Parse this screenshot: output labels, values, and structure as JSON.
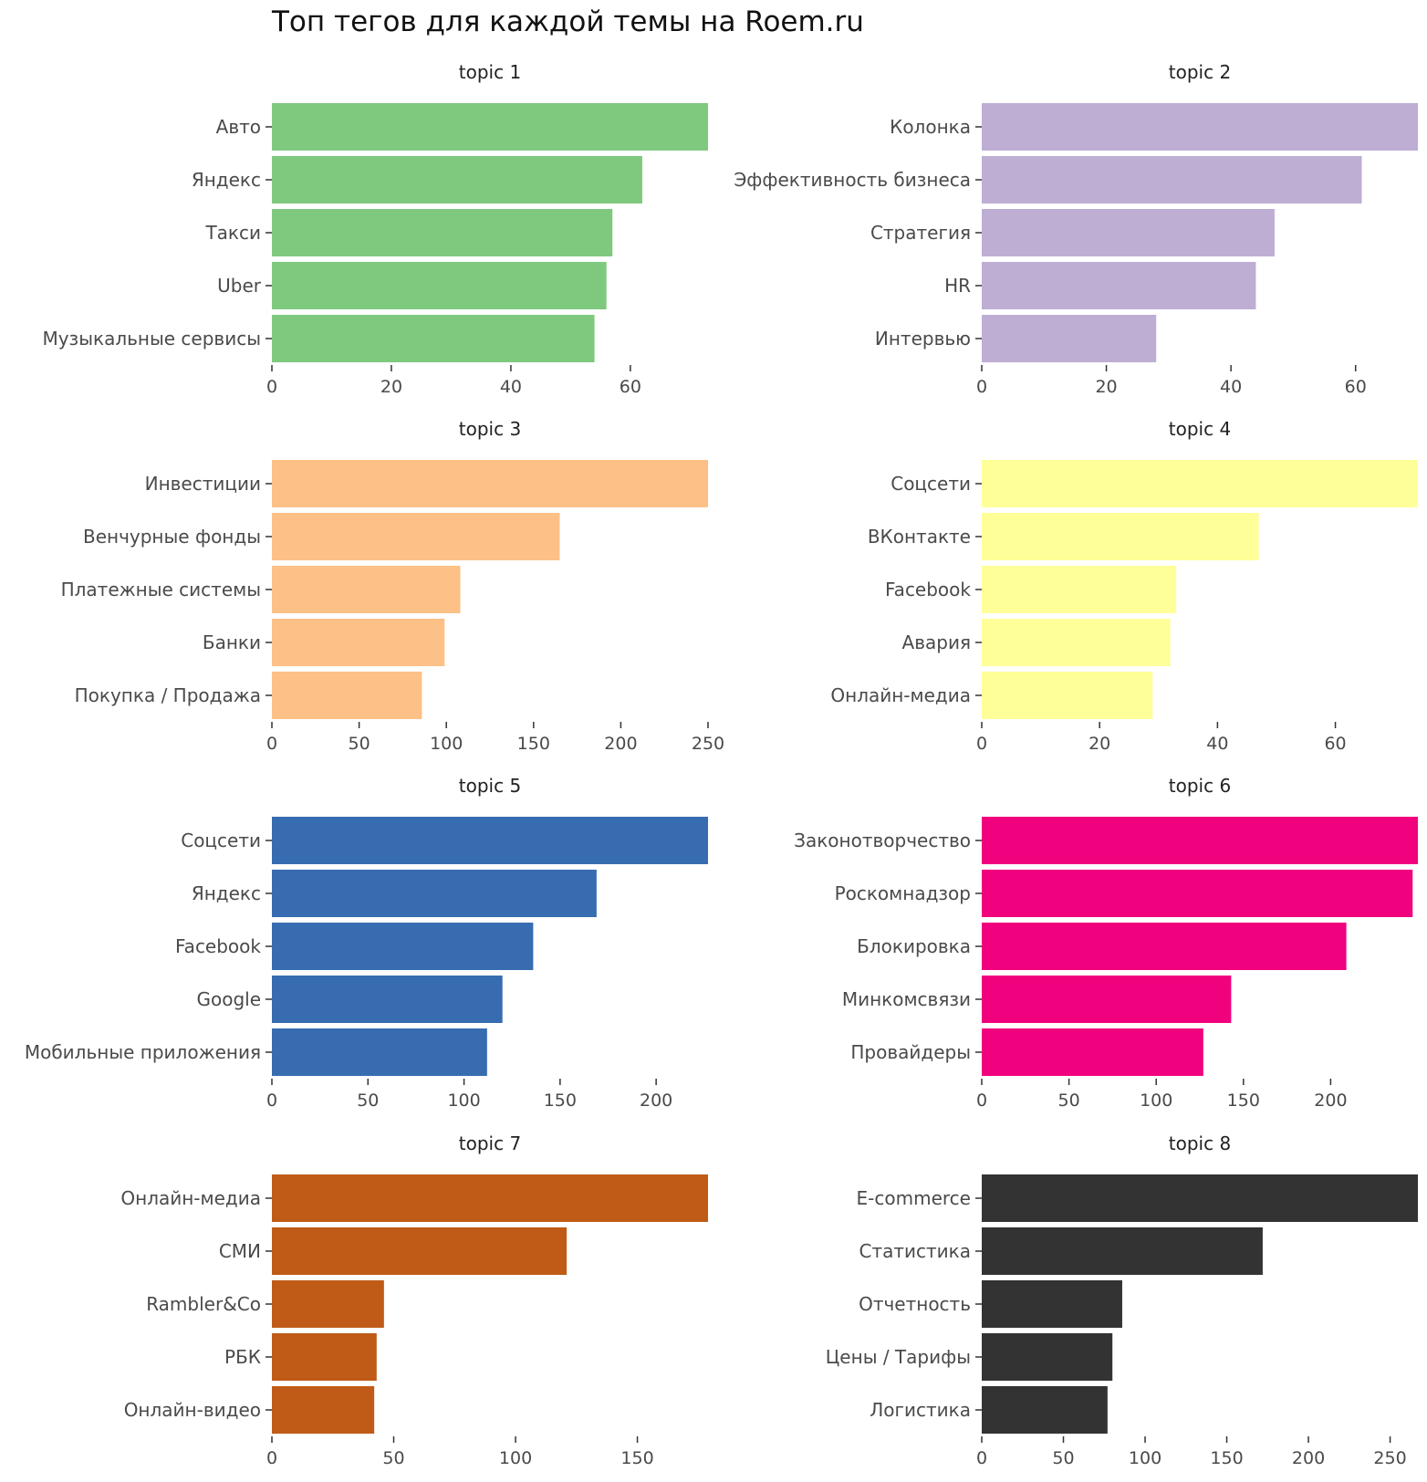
{
  "chart_data": {
    "type": "bar",
    "title": "Топ тегов для каждой темы на Roem.ru",
    "xlabel": "",
    "ylabel": "",
    "grid": false,
    "panels": [
      {
        "title": "topic 1",
        "color": "#7fc97f",
        "categories": [
          "Авто",
          "Яндекс",
          "Такси",
          "Uber",
          "Музыкальные сервисы"
        ],
        "values": [
          73,
          62,
          57,
          56,
          54
        ],
        "xlim": [
          0,
          73
        ],
        "xticks": [
          0,
          20,
          40,
          60
        ],
        "xtick_labels": [
          "0",
          "20",
          "40",
          "60"
        ]
      },
      {
        "title": "topic 2",
        "color": "#beaed4",
        "categories": [
          "Колонка",
          "Эффективность бизнеса",
          "Стратегия",
          "HR",
          "Интервью"
        ],
        "values": [
          70,
          61,
          47,
          44,
          28
        ],
        "xlim": [
          0,
          70
        ],
        "xticks": [
          0,
          20,
          40,
          60
        ],
        "xtick_labels": [
          "0",
          "20",
          "40",
          "60"
        ]
      },
      {
        "title": "topic 3",
        "color": "#fdc086",
        "categories": [
          "Инвестиции",
          "Венчурные фонды",
          "Платежные системы",
          "Банки",
          "Покупка / Продажа"
        ],
        "values": [
          250,
          165,
          108,
          99,
          86
        ],
        "xlim": [
          0,
          250
        ],
        "xticks": [
          0,
          50,
          100,
          150,
          200,
          250
        ],
        "xtick_labels": [
          "0",
          "50",
          "100",
          "150",
          "200",
          "250"
        ]
      },
      {
        "title": "topic 4",
        "color": "#ffff99",
        "categories": [
          "Соцсети",
          "ВКонтакте",
          "Facebook",
          "Авария",
          "Онлайн-медиа"
        ],
        "values": [
          74,
          47,
          33,
          32,
          29
        ],
        "xlim": [
          0,
          74
        ],
        "xticks": [
          0,
          20,
          40,
          60
        ],
        "xtick_labels": [
          "0",
          "20",
          "40",
          "60"
        ]
      },
      {
        "title": "topic 5",
        "color": "#386cb0",
        "categories": [
          "Соцсети",
          "Яндекс",
          "Facebook",
          "Google",
          "Мобильные приложения"
        ],
        "values": [
          227,
          169,
          136,
          120,
          112
        ],
        "xlim": [
          0,
          227
        ],
        "xticks": [
          0,
          50,
          100,
          150,
          200
        ],
        "xtick_labels": [
          "0",
          "50",
          "100",
          "150",
          "200"
        ]
      },
      {
        "title": "topic 6",
        "color": "#f0027f",
        "categories": [
          "Законотворчество",
          "Роскомнадзор",
          "Блокировка",
          "Минкомсвязи",
          "Провайдеры"
        ],
        "values": [
          250,
          247,
          209,
          143,
          127
        ],
        "xlim": [
          0,
          250
        ],
        "xticks": [
          0,
          50,
          100,
          150,
          200
        ],
        "xtick_labels": [
          "0",
          "50",
          "100",
          "150",
          "200"
        ]
      },
      {
        "title": "topic 7",
        "color": "#bf5b17",
        "categories": [
          "Онлайн-медиа",
          "СМИ",
          "Rambler&Co",
          "РБК",
          "Онлайн-видео"
        ],
        "values": [
          179,
          121,
          46,
          43,
          42
        ],
        "xlim": [
          0,
          179
        ],
        "xticks": [
          0,
          50,
          100,
          150
        ],
        "xtick_labels": [
          "0",
          "50",
          "100",
          "150"
        ]
      },
      {
        "title": "topic 8",
        "color": "#333333",
        "categories": [
          "E-commerce",
          "Статистика",
          "Отчетность",
          "Цены / Тарифы",
          "Логистика"
        ],
        "values": [
          267,
          172,
          86,
          80,
          77
        ],
        "xlim": [
          0,
          267
        ],
        "xticks": [
          0,
          50,
          100,
          150,
          200,
          250
        ],
        "xtick_labels": [
          "0",
          "50",
          "100",
          "150",
          "200",
          "250"
        ]
      }
    ]
  }
}
